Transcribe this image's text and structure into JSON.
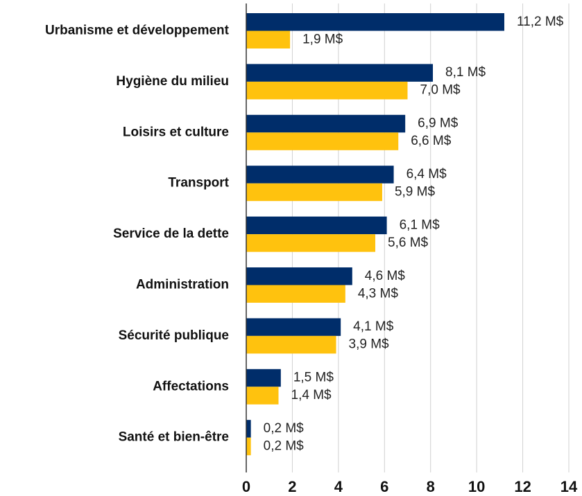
{
  "chart_data": {
    "type": "bar",
    "orientation": "horizontal",
    "categories": [
      "Urbanisme et développement",
      "Hygiène du milieu",
      "Loisirs et culture",
      "Transport",
      "Service de la dette",
      "Administration",
      "Sécurité publique",
      "Affectations",
      "Santé et bien-être"
    ],
    "series": [
      {
        "color": "#002d6a",
        "values": [
          11.2,
          8.1,
          6.9,
          6.4,
          6.1,
          4.6,
          4.1,
          1.5,
          0.2
        ],
        "value_labels": [
          "11,2 M$",
          "8,1 M$",
          "6,9 M$",
          "6,4 M$",
          "6,1 M$",
          "4,6 M$",
          "4,1 M$",
          "1,5 M$",
          "0,2 M$"
        ]
      },
      {
        "color": "#ffc20e",
        "values": [
          1.9,
          7.0,
          6.6,
          5.9,
          5.6,
          4.3,
          3.9,
          1.4,
          0.2
        ],
        "value_labels": [
          "1,9 M$",
          "7,0 M$",
          "6,6 M$",
          "5,9 M$",
          "5,6 M$",
          "4,3 M$",
          "3,9 M$",
          "1,4 M$",
          "0,2 M$"
        ]
      }
    ],
    "xlim": [
      0,
      14
    ],
    "xticks": [
      0,
      2,
      4,
      6,
      8,
      10,
      12,
      14
    ],
    "grid": true
  }
}
